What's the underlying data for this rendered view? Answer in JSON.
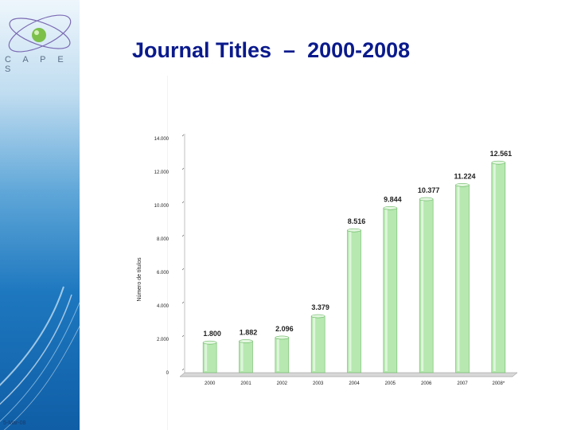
{
  "page": {
    "title": "Journal Titles  –  2000-2008"
  },
  "sidebar": {
    "logo_text": "C A P E S",
    "footer_text": "5-Mar-08"
  },
  "colors": {
    "title": "#0a1a8c",
    "bar": "#b6e8b0",
    "bar_edge": "#6fb96a",
    "sidebar": "#1e78bf"
  },
  "icons": {
    "logo": "globe-orbit-icon"
  },
  "chart_data": {
    "type": "bar",
    "title": "",
    "xlabel": "",
    "ylabel": "Número de títulos",
    "categories": [
      "2000",
      "2001",
      "2002",
      "2003",
      "2004",
      "2005",
      "2006",
      "2007",
      "2008*"
    ],
    "values": [
      1800,
      1882,
      2096,
      3379,
      8516,
      9844,
      10377,
      11224,
      12561
    ],
    "value_labels": [
      "1.800",
      "1.882",
      "2.096",
      "3.379",
      "8.516",
      "9.844",
      "10.377",
      "11.224",
      "12.561"
    ],
    "yticks": [
      0,
      2000,
      4000,
      6000,
      8000,
      10000,
      12000,
      14000
    ],
    "ytick_labels": [
      "0",
      "2.000",
      "4.000",
      "6.000",
      "8.000",
      "10.000",
      "12.000",
      "14.000"
    ],
    "ylim": [
      0,
      14000
    ],
    "grid": false,
    "legend": "none"
  }
}
